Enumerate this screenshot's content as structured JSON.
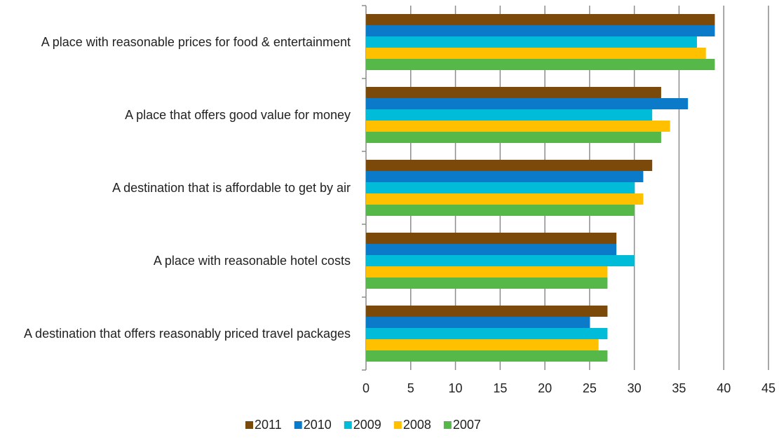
{
  "chart_data": {
    "type": "bar",
    "orientation": "horizontal",
    "categories": [
      "A place with reasonable prices for food & entertainment",
      "A place that offers good value for money",
      "A destination that is affordable to get by air",
      "A place with reasonable hotel costs",
      "A destination that offers reasonably priced travel packages"
    ],
    "series": [
      {
        "name": "2011",
        "color": "#7b4a0b",
        "values": [
          39,
          33,
          32,
          28,
          27
        ]
      },
      {
        "name": "2010",
        "color": "#0b7ac9",
        "values": [
          39,
          36,
          31,
          28,
          25
        ]
      },
      {
        "name": "2009",
        "color": "#00bcd9",
        "values": [
          37,
          32,
          30,
          30,
          27
        ]
      },
      {
        "name": "2008",
        "color": "#ffc000",
        "values": [
          38,
          34,
          31,
          27,
          26
        ]
      },
      {
        "name": "2007",
        "color": "#56b848",
        "values": [
          39,
          33,
          30,
          27,
          27
        ]
      }
    ],
    "xlim": [
      0,
      45
    ],
    "xticks": [
      0,
      5,
      10,
      15,
      20,
      25,
      30,
      35,
      40,
      45
    ],
    "grid": true,
    "legend": "bottom"
  }
}
